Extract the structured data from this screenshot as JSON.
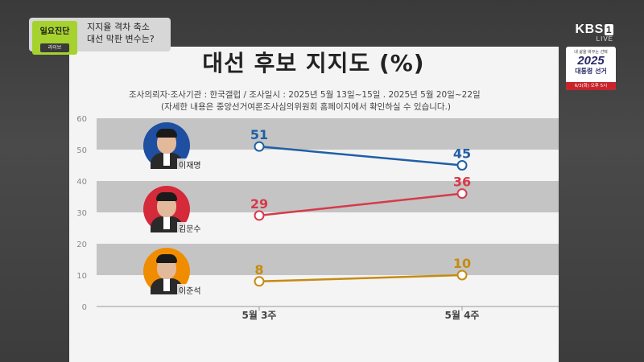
{
  "program": {
    "badge": "일요진단",
    "badge_sub": "라이브",
    "headline_1": "지지율 격차 축소",
    "headline_2": "대선 막판 변수는?"
  },
  "broadcaster": {
    "logo": "KBS",
    "channel": "1",
    "live": "LIVE",
    "election_tagline": "내 삶을 바꾸는 선택",
    "election_year": "2025",
    "election_name": "대통령 선거",
    "election_date": "6/3(화) 오후 5시"
  },
  "survey": {
    "info_line1": "조사의뢰자·조사기관 : 한국갤럽  / 조사일시 : 2025년 5월 13일~15일 . 2025년 5월 20일~22일",
    "info_line2": "(자세한 내용은 중앙선거여론조사심의위원회 홈페이지에서 확인하실 수 있습니다.)"
  },
  "chart_data": {
    "type": "line",
    "title": "대선 후보 지지도 (%)",
    "categories": [
      "5월 3주",
      "5월 4주"
    ],
    "ylim": [
      0,
      60
    ],
    "yticks": [
      0,
      10,
      20,
      30,
      40,
      50,
      60
    ],
    "grid": true,
    "series": [
      {
        "name": "이재명",
        "values": [
          51,
          45
        ],
        "color": "#1f5fa6"
      },
      {
        "name": "김문수",
        "values": [
          29,
          36
        ],
        "color": "#d63a4a"
      },
      {
        "name": "이준석",
        "values": [
          8,
          10
        ],
        "color": "#c78a10"
      }
    ],
    "avatar_colors": [
      "#1f4fa0",
      "#d42a3a",
      "#f08c00"
    ]
  }
}
